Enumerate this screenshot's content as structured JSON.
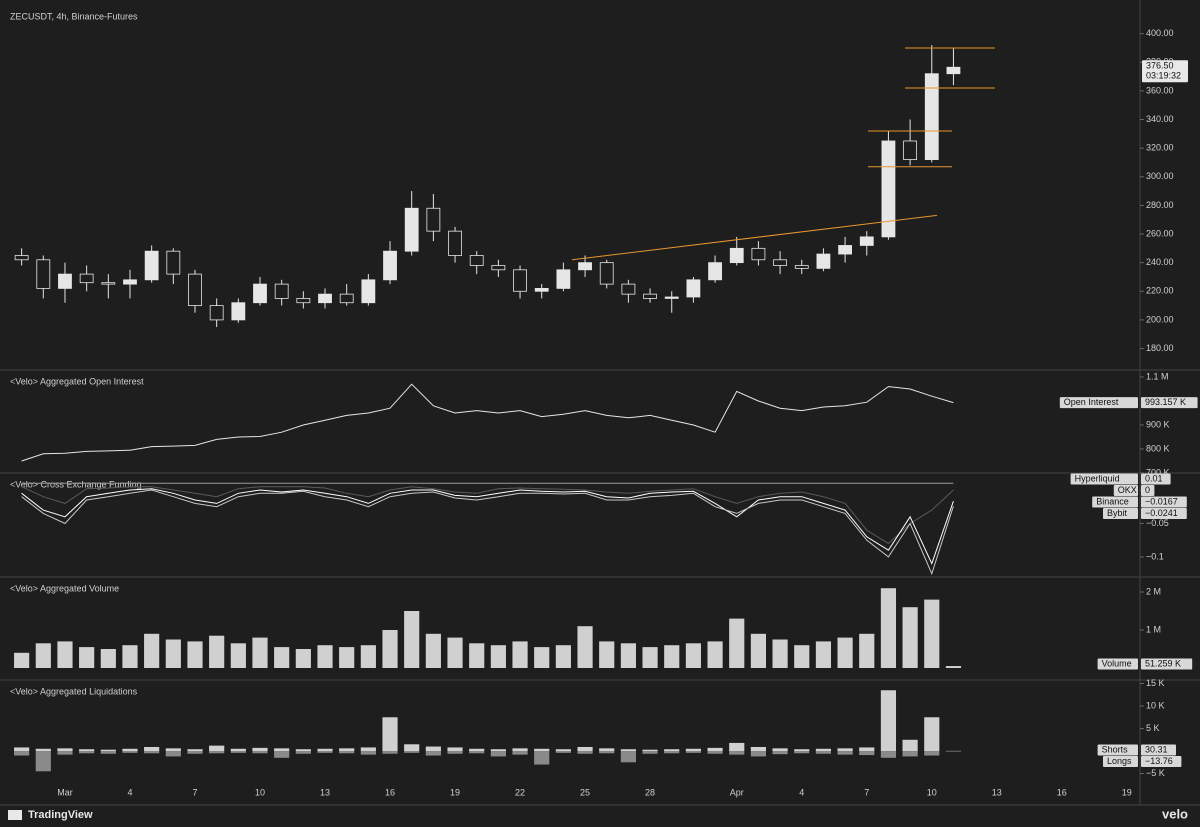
{
  "chart_data": [
    {
      "type": "candlestick",
      "title": "ZECUSDT, 4h, Binance-Futures",
      "categories": [
        null,
        null,
        "Mar",
        null,
        null,
        "4",
        null,
        null,
        "7",
        null,
        null,
        "10",
        null,
        null,
        "13",
        null,
        null,
        "16",
        null,
        null,
        "19",
        null,
        null,
        "22",
        null,
        null,
        "25",
        null,
        null,
        "28",
        null,
        null,
        null,
        "Apr",
        null,
        null,
        "4",
        null,
        null,
        "7",
        null,
        null,
        "10",
        null,
        null,
        "13",
        null,
        null,
        "16",
        null,
        null,
        "19"
      ],
      "open": [
        245,
        242,
        222,
        232,
        226,
        225,
        228,
        248,
        232,
        210,
        200,
        212,
        225,
        215,
        212,
        218,
        212,
        228,
        248,
        278,
        262,
        245,
        238,
        235,
        220,
        222,
        235,
        240,
        225,
        218,
        215,
        216,
        228,
        240,
        250,
        242,
        238,
        236,
        246,
        252,
        258,
        325,
        312,
        372,
        null,
        null,
        null,
        null,
        null,
        null,
        null,
        null
      ],
      "high": [
        250,
        245,
        240,
        238,
        232,
        235,
        252,
        250,
        235,
        215,
        215,
        230,
        228,
        220,
        222,
        225,
        232,
        255,
        290,
        288,
        265,
        248,
        242,
        238,
        225,
        240,
        245,
        242,
        228,
        222,
        220,
        230,
        245,
        258,
        255,
        248,
        242,
        250,
        258,
        262,
        332,
        340,
        392,
        390,
        null,
        null,
        null,
        null,
        null,
        null,
        null,
        null
      ],
      "low": [
        238,
        215,
        212,
        220,
        215,
        215,
        226,
        225,
        205,
        195,
        198,
        210,
        210,
        208,
        208,
        210,
        210,
        225,
        245,
        255,
        240,
        232,
        230,
        215,
        215,
        220,
        230,
        222,
        212,
        212,
        205,
        212,
        226,
        238,
        238,
        232,
        232,
        234,
        240,
        245,
        256,
        308,
        310,
        364,
        null,
        null,
        null,
        null,
        null,
        null,
        null,
        null
      ],
      "close": [
        242,
        222,
        232,
        226,
        225,
        228,
        248,
        232,
        210,
        200,
        212,
        225,
        215,
        212,
        218,
        212,
        228,
        248,
        278,
        262,
        245,
        238,
        235,
        220,
        222,
        235,
        240,
        225,
        218,
        215,
        216,
        228,
        240,
        250,
        242,
        238,
        236,
        246,
        252,
        258,
        325,
        312,
        372,
        376.5,
        null,
        null,
        null,
        null,
        null,
        null,
        null,
        null
      ],
      "last_label": "376.50",
      "countdown": "03:19:32",
      "ylim": [
        165,
        420
      ],
      "yticks": [
        {
          "value": 180,
          "label": "180.00"
        },
        {
          "value": 200,
          "label": "200.00"
        },
        {
          "value": 220,
          "label": "220.00"
        },
        {
          "value": 240,
          "label": "240.00"
        },
        {
          "value": 260,
          "label": "260.00"
        },
        {
          "value": 280,
          "label": "280.00"
        },
        {
          "value": 300,
          "label": "300.00"
        },
        {
          "value": 320,
          "label": "320.00"
        },
        {
          "value": 340,
          "label": "340.00"
        },
        {
          "value": 360,
          "label": "360.00"
        },
        {
          "value": 380,
          "label": "380.00"
        },
        {
          "value": 400,
          "label": "400.00"
        }
      ],
      "levels": [
        390,
        362,
        332,
        307
      ],
      "trendline": [
        242,
        273
      ],
      "drawing_color": "#e8952f",
      "up_color": "#e6e6e6",
      "down_color": "#1e1e1e"
    },
    {
      "type": "line",
      "title": "<Velo> Aggregated Open Interest",
      "series": [
        {
          "name": "Open Interest",
          "color": "#e6e6e6",
          "last_label": "993.157 K",
          "values": [
            750000,
            780000,
            782000,
            790000,
            792000,
            795000,
            810000,
            812000,
            815000,
            840000,
            850000,
            852000,
            870000,
            900000,
            920000,
            940000,
            950000,
            970000,
            1070000,
            980000,
            950000,
            960000,
            950000,
            960000,
            935000,
            945000,
            960000,
            940000,
            930000,
            940000,
            920000,
            900000,
            870000,
            1040000,
            1000000,
            970000,
            960000,
            975000,
            980000,
            995000,
            1060000,
            1050000,
            1020000,
            993157,
            null,
            null,
            null,
            null,
            null,
            null,
            null,
            null
          ]
        }
      ],
      "ylim": [
        704000,
        1129000
      ],
      "yticks": [
        {
          "value": 700000,
          "label": "700 K"
        },
        {
          "value": 800000,
          "label": "800 K"
        },
        {
          "value": 900000,
          "label": "900 K"
        },
        {
          "value": 1100000,
          "label": "1.1 M"
        }
      ]
    },
    {
      "type": "line",
      "title": "<Velo> Cross Exchange Funding",
      "series": [
        {
          "name": "Hyperliquid",
          "color": "#9a9a9a",
          "last_label": "0.01",
          "values": [
            0.01,
            0.01,
            0.01,
            0.01,
            0.01,
            0.01,
            0.01,
            0.01,
            0.01,
            0.01,
            0.01,
            0.01,
            0.01,
            0.01,
            0.01,
            0.01,
            0.01,
            0.01,
            0.01,
            0.01,
            0.01,
            0.01,
            0.01,
            0.01,
            0.01,
            0.01,
            0.01,
            0.01,
            0.01,
            0.01,
            0.01,
            0.01,
            0.01,
            0.01,
            0.01,
            0.01,
            0.01,
            0.01,
            0.01,
            0.01,
            0.01,
            0.01,
            0.01,
            0.01,
            null,
            null,
            null,
            null,
            null,
            null,
            null,
            null
          ]
        },
        {
          "name": "OKX",
          "color": "#5a5a5a",
          "last_label": "0",
          "values": [
            0.005,
            -0.01,
            -0.02,
            0.002,
            0.003,
            0.005,
            0.005,
            0,
            -0.005,
            -0.01,
            0.002,
            0.005,
            0.005,
            0.005,
            0.003,
            -0.005,
            -0.01,
            0,
            0.005,
            0.002,
            -0.003,
            -0.005,
            0.002,
            0.003,
            0.002,
            0.001,
            0,
            -0.003,
            -0.005,
            -0.002,
            0,
            0.002,
            -0.01,
            -0.02,
            -0.01,
            -0.005,
            -0.003,
            -0.01,
            -0.02,
            -0.06,
            -0.08,
            -0.05,
            -0.03,
            0,
            null,
            null,
            null,
            null,
            null,
            null,
            null,
            null
          ]
        },
        {
          "name": "Binance",
          "color": "#ffffff",
          "last_label": "−0.0167",
          "values": [
            -0.005,
            -0.03,
            -0.04,
            -0.01,
            -0.005,
            0,
            0.002,
            -0.005,
            -0.015,
            -0.02,
            -0.005,
            0,
            -0.003,
            0,
            -0.005,
            -0.01,
            -0.02,
            -0.005,
            0,
            0,
            -0.008,
            -0.01,
            -0.005,
            0,
            -0.002,
            -0.003,
            -0.002,
            -0.01,
            -0.012,
            -0.005,
            -0.003,
            -0.002,
            -0.02,
            -0.04,
            -0.015,
            -0.01,
            -0.01,
            -0.02,
            -0.03,
            -0.07,
            -0.09,
            -0.04,
            -0.11,
            -0.0167,
            null,
            null,
            null,
            null,
            null,
            null,
            null,
            null
          ]
        },
        {
          "name": "Bybit",
          "color": "#c8c8c8",
          "last_label": "−0.0241",
          "values": [
            -0.01,
            -0.035,
            -0.05,
            -0.015,
            -0.01,
            -0.005,
            0,
            -0.01,
            -0.02,
            -0.025,
            -0.01,
            -0.005,
            -0.005,
            -0.002,
            -0.01,
            -0.015,
            -0.025,
            -0.01,
            -0.005,
            -0.003,
            -0.012,
            -0.015,
            -0.01,
            -0.005,
            -0.005,
            -0.006,
            -0.005,
            -0.015,
            -0.015,
            -0.01,
            -0.008,
            -0.005,
            -0.025,
            -0.035,
            -0.02,
            -0.015,
            -0.015,
            -0.025,
            -0.035,
            -0.075,
            -0.1,
            -0.05,
            -0.125,
            -0.0241,
            null,
            null,
            null,
            null,
            null,
            null,
            null,
            null
          ]
        }
      ],
      "ylim": [
        -0.13,
        0.0254
      ],
      "yticks": [
        {
          "value": -0.1,
          "label": "−0.1"
        },
        {
          "value": -0.05,
          "label": "−0.05"
        },
        0
      ]
    },
    {
      "type": "bar",
      "title": "<Velo> Aggregated Volume",
      "series": [
        {
          "name": "Volume",
          "color": "#d0d0d0",
          "last_label": "51.259 K",
          "values": [
            400000,
            650000,
            700000,
            550000,
            500000,
            600000,
            900000,
            750000,
            700000,
            850000,
            650000,
            800000,
            550000,
            500000,
            600000,
            550000,
            600000,
            1000000,
            1500000,
            900000,
            800000,
            650000,
            600000,
            700000,
            550000,
            600000,
            1100000,
            700000,
            650000,
            550000,
            600000,
            650000,
            700000,
            1300000,
            900000,
            750000,
            600000,
            700000,
            800000,
            900000,
            2100000,
            1600000,
            1800000,
            51259,
            null,
            null,
            null,
            null,
            null,
            null,
            null,
            null
          ]
        }
      ],
      "ylim": [
        -316000,
        2395000
      ],
      "yticks": [
        {
          "value": 1000000,
          "label": "1 M"
        },
        {
          "value": 2000000,
          "label": "2 M"
        }
      ]
    },
    {
      "type": "bar",
      "title": "<Velo> Aggregated Liquidations",
      "series": [
        {
          "name": "Shorts",
          "color": "#d0d0d0",
          "last_label": "30.31",
          "values": [
            800,
            500,
            600,
            400,
            300,
            500,
            900,
            600,
            400,
            1200,
            500,
            700,
            600,
            400,
            500,
            600,
            800,
            7500,
            1500,
            1000,
            800,
            500,
            400,
            600,
            500,
            400,
            900,
            600,
            400,
            300,
            400,
            500,
            700,
            1800,
            900,
            600,
            400,
            500,
            600,
            800,
            13500,
            2500,
            7500,
            30.31,
            null,
            null,
            null,
            null,
            null,
            null,
            null,
            null
          ]
        },
        {
          "name": "Longs",
          "color": "#8a8a8a",
          "last_label": "−13.76",
          "values": [
            -1000,
            -4500,
            -800,
            -500,
            -600,
            -400,
            -500,
            -1200,
            -600,
            -500,
            -400,
            -500,
            -1500,
            -600,
            -400,
            -500,
            -800,
            -600,
            -400,
            -1000,
            -600,
            -500,
            -1200,
            -800,
            -3000,
            -400,
            -600,
            -500,
            -2500,
            -600,
            -500,
            -400,
            -600,
            -800,
            -1200,
            -700,
            -500,
            -600,
            -800,
            -900,
            -1500,
            -1200,
            -1000,
            -13.76,
            null,
            null,
            null,
            null,
            null,
            null,
            null,
            null
          ]
        }
      ],
      "ylim": [
        -7100,
        15780
      ],
      "yticks": [
        {
          "value": -5000,
          "label": "−5 K"
        },
        {
          "value": 5000,
          "label": "5 K"
        },
        {
          "value": 10000,
          "label": "10 K"
        },
        {
          "value": 15000,
          "label": "15 K"
        }
      ]
    }
  ],
  "footer": {
    "brand": "TradingView",
    "source": "velo"
  }
}
